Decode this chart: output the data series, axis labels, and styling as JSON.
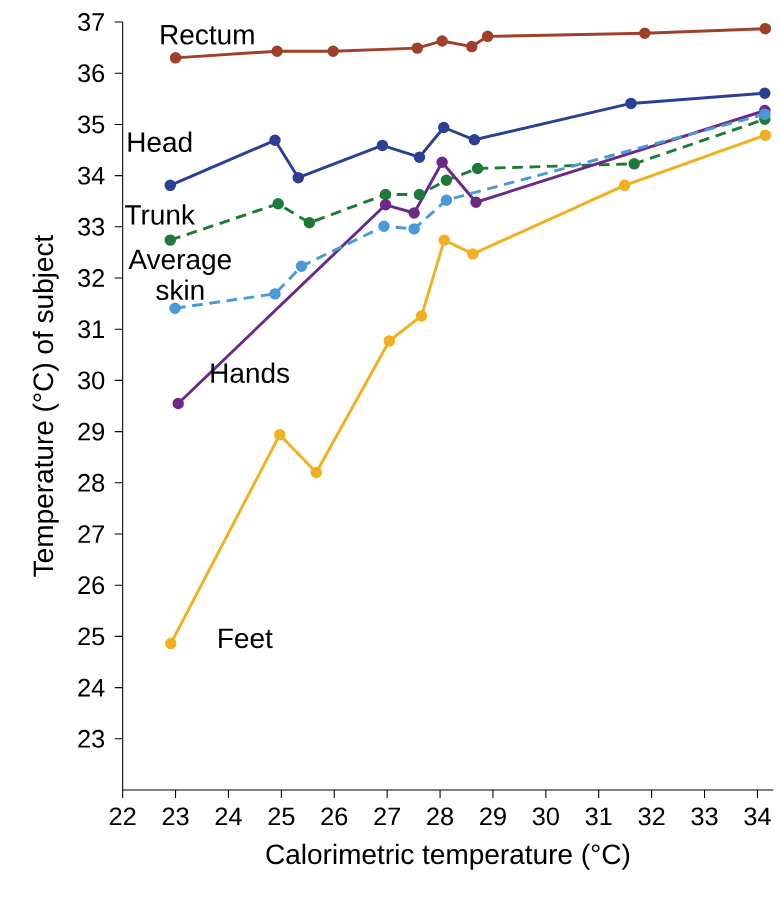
{
  "chart_data": {
    "type": "line",
    "xlabel": "Calorimetric temperature (°C)",
    "ylabel": "Temperature (°C) of subject",
    "xlim": [
      22,
      34.3
    ],
    "ylim": [
      22,
      37
    ],
    "xticks": [
      22,
      23,
      24,
      25,
      26,
      27,
      28,
      29,
      30,
      31,
      32,
      33,
      34
    ],
    "yticks": [
      23,
      24,
      25,
      26,
      27,
      28,
      29,
      30,
      31,
      32,
      33,
      34,
      35,
      36,
      37
    ],
    "marker": "circle",
    "grid": false,
    "legend": false,
    "series": [
      {
        "name": "Rectum",
        "color": "#a0402a",
        "line_style": "solid",
        "x": [
          23.0,
          24.92,
          25.98,
          27.57,
          28.04,
          28.6,
          28.9,
          31.87,
          34.15
        ],
        "values": [
          36.3,
          36.43,
          36.43,
          36.49,
          36.63,
          36.52,
          36.72,
          36.78,
          36.87
        ]
      },
      {
        "name": "Head",
        "color": "#2b3f95",
        "line_style": "solid",
        "x": [
          22.9,
          24.88,
          25.32,
          26.91,
          27.61,
          28.07,
          28.65,
          31.61,
          34.14
        ],
        "values": [
          33.81,
          34.69,
          33.96,
          34.59,
          34.36,
          34.94,
          34.7,
          35.41,
          35.61
        ]
      },
      {
        "name": "Trunk",
        "color": "#1f7a3a",
        "line_style": "dashed",
        "x": [
          22.9,
          24.94,
          25.53,
          26.97,
          27.61,
          28.12,
          28.71,
          31.67,
          34.14
        ],
        "values": [
          32.74,
          33.45,
          33.08,
          33.63,
          33.63,
          33.91,
          34.14,
          34.23,
          35.1
        ]
      },
      {
        "name": "Average skin",
        "color": "#4a9ad6",
        "line_style": "dashed",
        "x": [
          22.99,
          24.88,
          25.38,
          26.94,
          27.51,
          28.12,
          34.14
        ],
        "values": [
          31.41,
          31.69,
          32.23,
          33.01,
          32.96,
          33.52,
          35.2
        ]
      },
      {
        "name": "Hands",
        "color": "#6b2a8a",
        "line_style": "solid",
        "x": [
          23.05,
          26.97,
          27.51,
          28.04,
          28.68,
          34.14
        ],
        "values": [
          29.55,
          33.43,
          33.27,
          34.26,
          33.48,
          35.27
        ]
      },
      {
        "name": "Feet",
        "color": "#f0b020",
        "line_style": "solid",
        "x": [
          22.91,
          24.97,
          25.66,
          27.04,
          27.65,
          28.08,
          28.62,
          31.49,
          34.15
        ],
        "values": [
          24.86,
          28.94,
          28.2,
          30.77,
          31.26,
          32.74,
          32.47,
          33.81,
          34.79
        ]
      }
    ]
  }
}
